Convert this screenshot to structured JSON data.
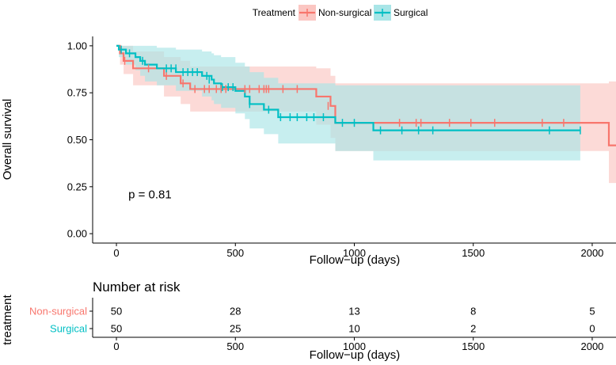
{
  "chart_data": {
    "type": "line",
    "subtype": "kaplan-meier",
    "legend": {
      "title": "Treatment",
      "position": "top"
    },
    "xlabel": "Follow−up (days)",
    "ylabel": "Overall survival",
    "xlim": [
      -100,
      2100
    ],
    "ylim": [
      -0.05,
      1.05
    ],
    "xticks": [
      0,
      500,
      1000,
      1500,
      2000
    ],
    "xtick_labels": [
      "0",
      "500",
      "1000",
      "1500",
      "2000"
    ],
    "yticks": [
      0,
      0.25,
      0.5,
      0.75,
      1.0
    ],
    "ytick_labels": [
      "0.00",
      "0.25",
      "0.50",
      "0.75",
      "1.00"
    ],
    "annotation": "p = 0.81",
    "annotation_at": [
      50,
      0.21
    ],
    "series": [
      {
        "name": "Non-surgical",
        "color": "#F8766D",
        "fill": "#FBC6C2",
        "steps": [
          [
            0,
            1.0
          ],
          [
            15,
            0.96
          ],
          [
            30,
            0.92
          ],
          [
            70,
            0.88
          ],
          [
            200,
            0.84
          ],
          [
            270,
            0.8
          ],
          [
            310,
            0.77
          ],
          [
            840,
            0.73
          ],
          [
            900,
            0.68
          ],
          [
            920,
            0.59
          ],
          [
            2070,
            0.47
          ],
          [
            2100,
            0.47
          ]
        ],
        "lower": [
          [
            0,
            1.0
          ],
          [
            15,
            0.9
          ],
          [
            30,
            0.85
          ],
          [
            70,
            0.79
          ],
          [
            200,
            0.73
          ],
          [
            270,
            0.69
          ],
          [
            310,
            0.65
          ],
          [
            840,
            0.58
          ],
          [
            900,
            0.51
          ],
          [
            920,
            0.44
          ],
          [
            2070,
            0.27
          ],
          [
            2100,
            0.27
          ]
        ],
        "upper": [
          [
            0,
            1.0
          ],
          [
            15,
            1.0
          ],
          [
            30,
            1.0
          ],
          [
            70,
            0.97
          ],
          [
            200,
            0.94
          ],
          [
            270,
            0.92
          ],
          [
            310,
            0.89
          ],
          [
            840,
            0.88
          ],
          [
            900,
            0.84
          ],
          [
            920,
            0.8
          ],
          [
            2070,
            0.81
          ],
          [
            2100,
            0.81
          ]
        ],
        "censored": [
          [
            35,
            0.92
          ],
          [
            135,
            0.88
          ],
          [
            210,
            0.84
          ],
          [
            280,
            0.8
          ],
          [
            330,
            0.77
          ],
          [
            370,
            0.77
          ],
          [
            390,
            0.77
          ],
          [
            420,
            0.77
          ],
          [
            440,
            0.77
          ],
          [
            460,
            0.77
          ],
          [
            540,
            0.77
          ],
          [
            560,
            0.77
          ],
          [
            600,
            0.77
          ],
          [
            620,
            0.77
          ],
          [
            630,
            0.77
          ],
          [
            640,
            0.77
          ],
          [
            700,
            0.77
          ],
          [
            760,
            0.77
          ],
          [
            890,
            0.68
          ],
          [
            1190,
            0.59
          ],
          [
            1260,
            0.59
          ],
          [
            1280,
            0.59
          ],
          [
            1400,
            0.59
          ],
          [
            1490,
            0.59
          ],
          [
            1590,
            0.59
          ],
          [
            1790,
            0.59
          ],
          [
            1880,
            0.59
          ]
        ]
      },
      {
        "name": "Surgical",
        "color": "#00BFC4",
        "fill": "#A9E5E7",
        "steps": [
          [
            0,
            1.0
          ],
          [
            10,
            0.98
          ],
          [
            40,
            0.96
          ],
          [
            80,
            0.94
          ],
          [
            100,
            0.92
          ],
          [
            120,
            0.9
          ],
          [
            170,
            0.88
          ],
          [
            250,
            0.86
          ],
          [
            360,
            0.84
          ],
          [
            400,
            0.82
          ],
          [
            410,
            0.8
          ],
          [
            440,
            0.78
          ],
          [
            500,
            0.76
          ],
          [
            540,
            0.73
          ],
          [
            560,
            0.69
          ],
          [
            620,
            0.66
          ],
          [
            680,
            0.62
          ],
          [
            920,
            0.59
          ],
          [
            1080,
            0.55
          ],
          [
            1950,
            0.55
          ]
        ],
        "lower": [
          [
            0,
            1.0
          ],
          [
            10,
            0.94
          ],
          [
            40,
            0.9
          ],
          [
            80,
            0.87
          ],
          [
            100,
            0.84
          ],
          [
            120,
            0.81
          ],
          [
            170,
            0.79
          ],
          [
            250,
            0.76
          ],
          [
            360,
            0.73
          ],
          [
            400,
            0.71
          ],
          [
            410,
            0.69
          ],
          [
            440,
            0.67
          ],
          [
            500,
            0.64
          ],
          [
            540,
            0.61
          ],
          [
            560,
            0.56
          ],
          [
            620,
            0.53
          ],
          [
            680,
            0.48
          ],
          [
            920,
            0.44
          ],
          [
            1080,
            0.39
          ],
          [
            1950,
            0.39
          ]
        ],
        "upper": [
          [
            0,
            1.0
          ],
          [
            10,
            1.0
          ],
          [
            40,
            1.0
          ],
          [
            80,
            1.0
          ],
          [
            100,
            1.0
          ],
          [
            120,
            1.0
          ],
          [
            170,
            0.99
          ],
          [
            250,
            0.98
          ],
          [
            360,
            0.97
          ],
          [
            400,
            0.96
          ],
          [
            410,
            0.95
          ],
          [
            440,
            0.94
          ],
          [
            500,
            0.91
          ],
          [
            540,
            0.89
          ],
          [
            560,
            0.86
          ],
          [
            620,
            0.83
          ],
          [
            680,
            0.8
          ],
          [
            920,
            0.79
          ],
          [
            1080,
            0.79
          ],
          [
            1950,
            0.79
          ]
        ],
        "censored": [
          [
            20,
            0.98
          ],
          [
            55,
            0.96
          ],
          [
            110,
            0.92
          ],
          [
            210,
            0.88
          ],
          [
            230,
            0.88
          ],
          [
            250,
            0.88
          ],
          [
            280,
            0.86
          ],
          [
            300,
            0.86
          ],
          [
            320,
            0.86
          ],
          [
            340,
            0.86
          ],
          [
            380,
            0.84
          ],
          [
            390,
            0.82
          ],
          [
            445,
            0.78
          ],
          [
            470,
            0.78
          ],
          [
            490,
            0.78
          ],
          [
            560,
            0.69
          ],
          [
            640,
            0.66
          ],
          [
            690,
            0.62
          ],
          [
            730,
            0.62
          ],
          [
            760,
            0.62
          ],
          [
            800,
            0.62
          ],
          [
            830,
            0.62
          ],
          [
            870,
            0.62
          ],
          [
            950,
            0.59
          ],
          [
            1000,
            0.59
          ],
          [
            1110,
            0.55
          ],
          [
            1200,
            0.55
          ],
          [
            1270,
            0.55
          ],
          [
            1330,
            0.55
          ],
          [
            1820,
            0.55
          ],
          [
            1950,
            0.55
          ]
        ]
      }
    ],
    "risk_table": {
      "title": "Number at risk",
      "ylabel": "treatment",
      "xlabel": "Follow−up (days)",
      "times": [
        0,
        500,
        1000,
        1500,
        2000
      ],
      "rows": [
        {
          "name": "Non-surgical",
          "color": "#F8766D",
          "counts": [
            "50",
            "28",
            "13",
            "8",
            "5"
          ]
        },
        {
          "name": "Surgical",
          "color": "#00BFC4",
          "counts": [
            "50",
            "25",
            "10",
            "2",
            "0"
          ]
        }
      ]
    }
  }
}
